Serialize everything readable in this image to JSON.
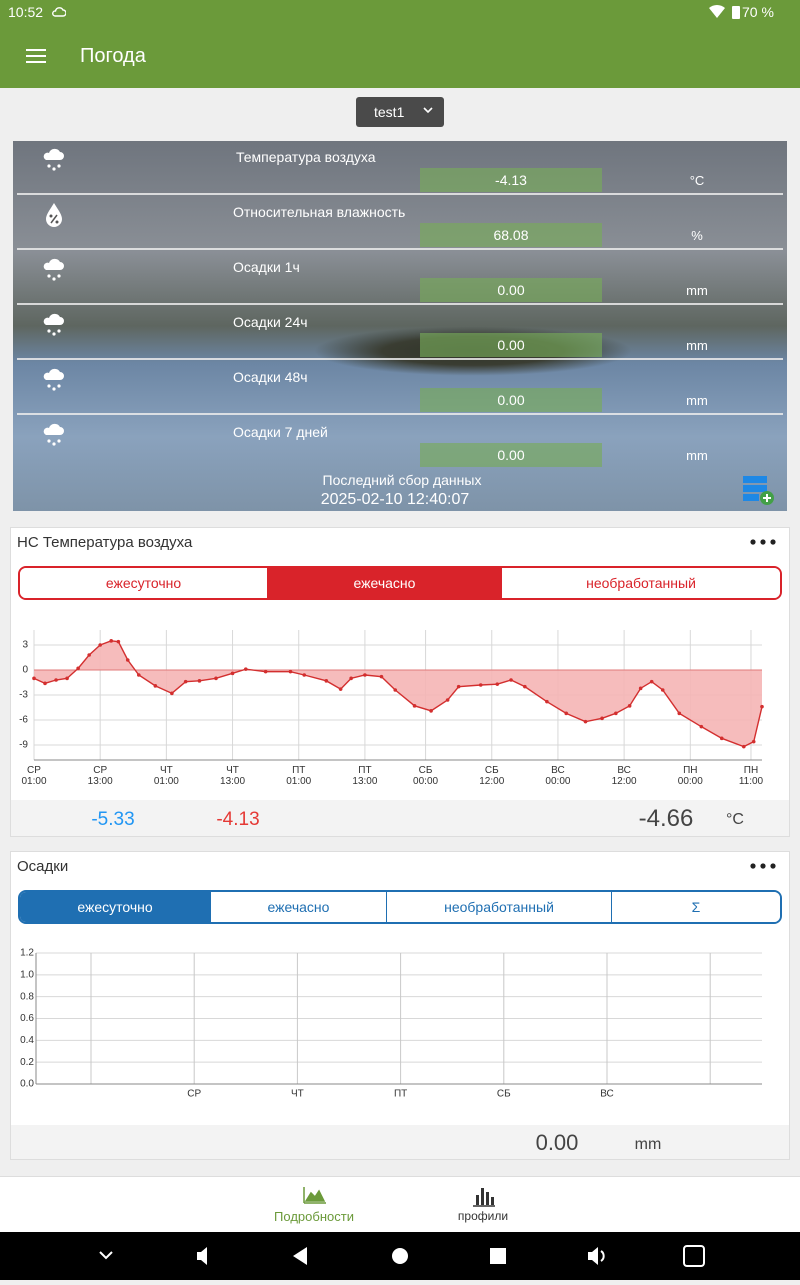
{
  "status_bar": {
    "time": "10:52",
    "battery": "70 %"
  },
  "app_bar": {
    "title": "Погода"
  },
  "station_selector": {
    "value": "test1"
  },
  "readings": [
    {
      "label": "Температура воздуха",
      "value": "-4.13",
      "unit": "°C"
    },
    {
      "label": "Относительная влажность",
      "value": "68.08",
      "unit": "%"
    },
    {
      "label": "Осадки 1ч",
      "value": "0.00",
      "unit": "mm"
    },
    {
      "label": "Осадки 24ч",
      "value": "0.00",
      "unit": "mm"
    },
    {
      "label": "Осадки 48ч",
      "value": "0.00",
      "unit": "mm"
    },
    {
      "label": "Осадки 7 дней",
      "value": "0.00",
      "unit": "mm"
    }
  ],
  "last_collection": {
    "label": "Последний сбор данных",
    "time": "2025-02-10 12:40:07"
  },
  "temperature_card": {
    "title": "НС Температура воздуха",
    "tabs": [
      "ежесуточно",
      "ежечасно",
      "необработанный"
    ],
    "active_tab": 1,
    "min": "-5.33",
    "max": "-4.13",
    "current": "-4.66",
    "unit": "°C",
    "chart_data": {
      "type": "line",
      "x": [
        0,
        2,
        4,
        6,
        8,
        10,
        12,
        14,
        15.3,
        17,
        19,
        22,
        25,
        27.5,
        30,
        33,
        36,
        38.4,
        42,
        46.5,
        49,
        53,
        55.6,
        57.5,
        60,
        63,
        65.5,
        69,
        72,
        75,
        77,
        81,
        84,
        86.5,
        89,
        93,
        96.5,
        100,
        103,
        105.5,
        108,
        110,
        112,
        114,
        117,
        121,
        124.7,
        128.7,
        130.5,
        132
      ],
      "values": [
        -1.0,
        -1.6,
        -1.2,
        -1.0,
        0.2,
        1.8,
        3.0,
        3.5,
        3.4,
        1.2,
        -0.6,
        -1.9,
        -2.8,
        -1.4,
        -1.3,
        -1.0,
        -0.4,
        0.1,
        -0.2,
        -0.2,
        -0.6,
        -1.3,
        -2.3,
        -1.0,
        -0.6,
        -0.8,
        -2.4,
        -4.3,
        -4.9,
        -3.6,
        -2.0,
        -1.8,
        -1.7,
        -1.2,
        -2.0,
        -3.8,
        -5.2,
        -6.2,
        -5.8,
        -5.2,
        -4.3,
        -2.2,
        -1.4,
        -2.4,
        -5.2,
        -6.8,
        -8.2,
        -9.2,
        -8.6,
        -4.4
      ],
      "color": "#d32f2f",
      "fill_color": "#f5b5b5",
      "xlim": [
        0,
        132
      ],
      "xticks": [
        {
          "value": 0,
          "label": "СР\n01:00"
        },
        {
          "value": 12,
          "label": "СР\n13:00"
        },
        {
          "value": 24,
          "label": "ЧТ\n01:00"
        },
        {
          "value": 36,
          "label": "ЧТ\n13:00"
        },
        {
          "value": 48,
          "label": "ПТ\n01:00"
        },
        {
          "value": 60,
          "label": "ПТ\n13:00"
        },
        {
          "value": 71,
          "label": "СБ\n00:00"
        },
        {
          "value": 83,
          "label": "СБ\n12:00"
        },
        {
          "value": 95,
          "label": "ВС\n00:00"
        },
        {
          "value": 107,
          "label": "ВС\n12:00"
        },
        {
          "value": 119,
          "label": "ПН\n00:00"
        },
        {
          "value": 130,
          "label": "ПН\n11:00"
        }
      ],
      "ylim": [
        -10.8,
        4.8
      ],
      "yticks": [
        3,
        0,
        -3,
        -6,
        -9
      ],
      "grid": true
    }
  },
  "precipitation_card": {
    "title": "Осадки",
    "tabs": [
      "ежесуточно",
      "ежечасно",
      "необработанный",
      "Σ"
    ],
    "active_tab": 0,
    "current": "0.00",
    "unit": "mm",
    "chart_data": {
      "type": "bar",
      "categories": [
        null,
        "СР",
        "ЧТ",
        "ПТ",
        "СБ",
        "ВС",
        null
      ],
      "ylim": [
        0,
        1.2
      ],
      "yticks": [
        {
          "value": 0,
          "label": "0.0"
        },
        0.2,
        0.4,
        0.6,
        0.8,
        {
          "value": 1,
          "label": "1.0"
        },
        1.2
      ],
      "grid": true
    }
  },
  "bottom_nav": {
    "items": [
      "Подробности",
      "профили"
    ],
    "active": 0
  }
}
